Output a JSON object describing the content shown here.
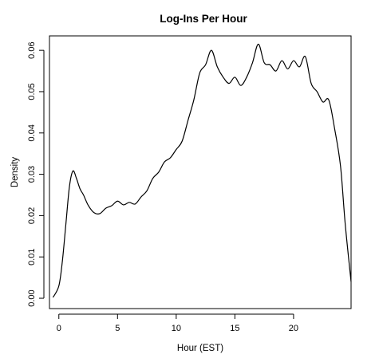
{
  "chart_data": {
    "type": "line",
    "title": "Log-Ins Per Hour",
    "xlabel": "Hour (EST)",
    "ylabel": "Density",
    "xlim": [
      -0.8,
      24.9
    ],
    "ylim": [
      -0.0025,
      0.0635
    ],
    "x_ticks": [
      0,
      5,
      10,
      15,
      20
    ],
    "y_ticks": [
      0.0,
      0.01,
      0.02,
      0.03,
      0.04,
      0.05,
      0.06
    ],
    "y_tick_labels": [
      "0.00",
      "0.01",
      "0.02",
      "0.03",
      "0.04",
      "0.05",
      "0.06"
    ],
    "grid": false,
    "legend": "none",
    "line_color": "#000000",
    "series": [
      {
        "x": [
          -0.5,
          0.0,
          0.3,
          0.6,
          0.9,
          1.2,
          1.5,
          1.8,
          2.1,
          2.5,
          3.0,
          3.5,
          4.0,
          4.5,
          5.0,
          5.5,
          6.0,
          6.5,
          7.0,
          7.5,
          8.0,
          8.5,
          9.0,
          9.5,
          10.0,
          10.5,
          11.0,
          11.5,
          12.0,
          12.5,
          13.0,
          13.5,
          14.0,
          14.5,
          15.0,
          15.5,
          16.0,
          16.5,
          17.0,
          17.5,
          18.0,
          18.5,
          19.0,
          19.5,
          20.0,
          20.5,
          21.0,
          21.5,
          22.0,
          22.5,
          23.0,
          23.5,
          24.0,
          24.4,
          24.9
        ],
        "y": [
          0.0002,
          0.003,
          0.009,
          0.018,
          0.027,
          0.0308,
          0.029,
          0.0265,
          0.025,
          0.0225,
          0.0207,
          0.0205,
          0.0218,
          0.0224,
          0.0235,
          0.0226,
          0.0232,
          0.0228,
          0.0245,
          0.026,
          0.029,
          0.0305,
          0.033,
          0.034,
          0.036,
          0.038,
          0.043,
          0.048,
          0.0545,
          0.0565,
          0.06,
          0.056,
          0.0535,
          0.052,
          0.0535,
          0.0515,
          0.0535,
          0.057,
          0.0615,
          0.057,
          0.0565,
          0.055,
          0.0575,
          0.0555,
          0.0575,
          0.056,
          0.0585,
          0.052,
          0.05,
          0.0475,
          0.048,
          0.041,
          0.032,
          0.018,
          0.004
        ]
      }
    ]
  }
}
